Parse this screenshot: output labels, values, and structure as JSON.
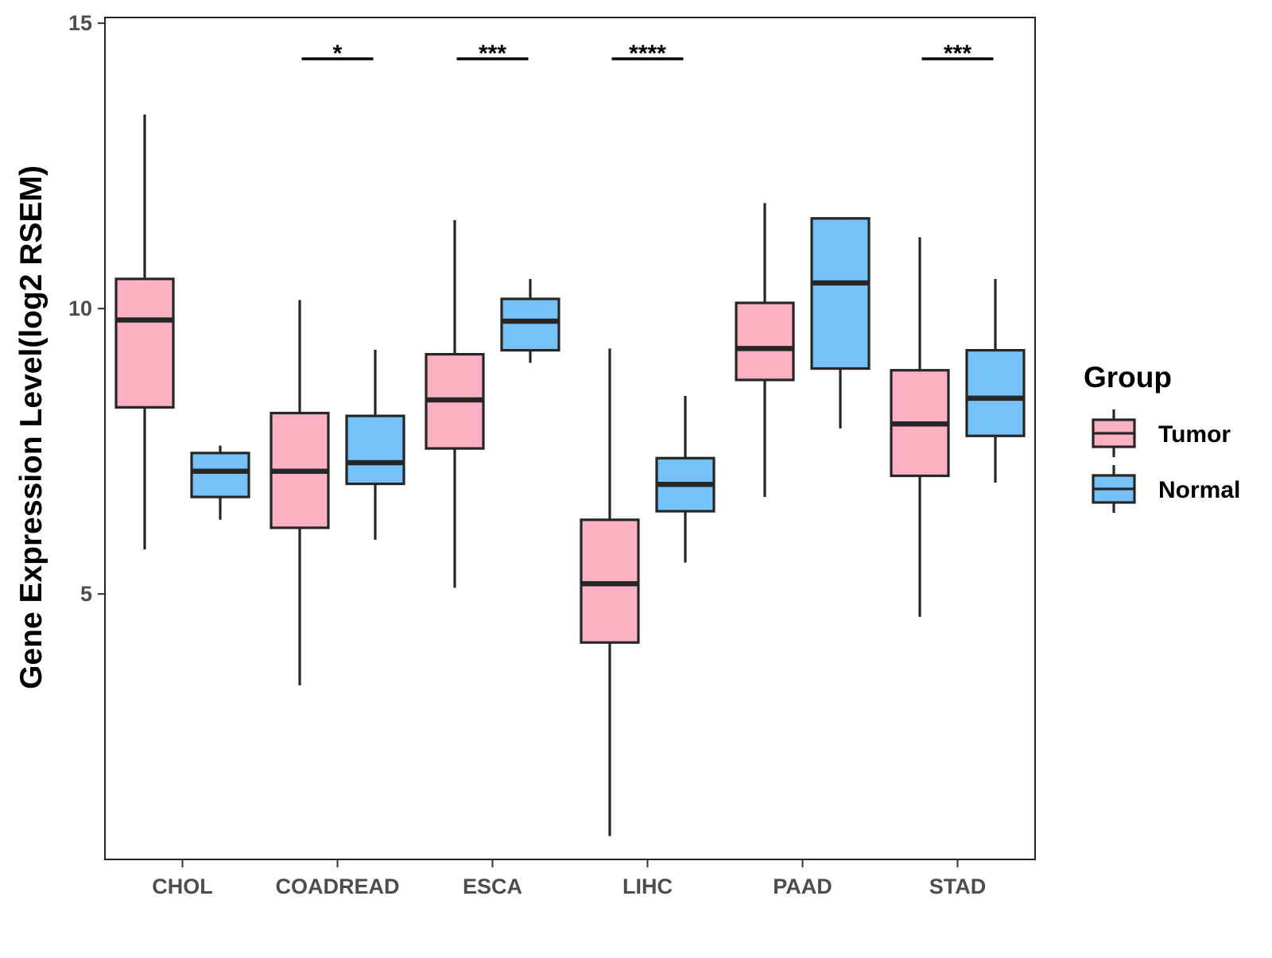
{
  "chart_data": {
    "type": "boxplot",
    "title": "",
    "xlabel": "",
    "ylabel": "Gene Expression Level(log2 RSEM)",
    "ylim": [
      0.35,
      15.1
    ],
    "yticks": [
      5,
      10,
      15
    ],
    "grid": false,
    "legend": {
      "title": "Group",
      "position": "right",
      "entries": [
        "Tumor",
        "Normal"
      ]
    },
    "categories": [
      "CHOL",
      "COADREAD",
      "ESCA",
      "LIHC",
      "PAAD",
      "STAD"
    ],
    "series": [
      {
        "name": "Tumor",
        "color": "#FBB1C2",
        "boxes": [
          {
            "min": 5.78,
            "q1": 8.27,
            "median": 9.8,
            "q3": 10.52,
            "max": 13.4
          },
          {
            "min": 3.4,
            "q1": 6.16,
            "median": 7.15,
            "q3": 8.17,
            "max": 10.15
          },
          {
            "min": 5.11,
            "q1": 7.55,
            "median": 8.4,
            "q3": 9.2,
            "max": 11.55
          },
          {
            "min": 0.76,
            "q1": 4.15,
            "median": 5.18,
            "q3": 6.3,
            "max": 9.3
          },
          {
            "min": 6.7,
            "q1": 8.75,
            "median": 9.3,
            "q3": 10.1,
            "max": 11.85
          },
          {
            "min": 4.6,
            "q1": 7.07,
            "median": 7.98,
            "q3": 8.92,
            "max": 11.25
          }
        ]
      },
      {
        "name": "Normal",
        "color": "#76C1F8",
        "boxes": [
          {
            "min": 6.3,
            "q1": 6.7,
            "median": 7.15,
            "q3": 7.47,
            "max": 7.6
          },
          {
            "min": 5.95,
            "q1": 6.93,
            "median": 7.3,
            "q3": 8.12,
            "max": 9.28
          },
          {
            "min": 9.05,
            "q1": 9.27,
            "median": 9.78,
            "q3": 10.17,
            "max": 10.52
          },
          {
            "min": 5.55,
            "q1": 6.45,
            "median": 6.92,
            "q3": 7.38,
            "max": 8.47
          },
          {
            "min": 7.9,
            "q1": 8.95,
            "median": 10.45,
            "q3": 11.58,
            "max": 11.6
          },
          {
            "min": 6.95,
            "q1": 7.77,
            "median": 8.43,
            "q3": 9.27,
            "max": 10.52
          }
        ]
      }
    ],
    "significance": [
      {
        "category": "COADREAD",
        "label": "*"
      },
      {
        "category": "ESCA",
        "label": "***"
      },
      {
        "category": "LIHC",
        "label": "****"
      },
      {
        "category": "STAD",
        "label": "***"
      }
    ]
  }
}
